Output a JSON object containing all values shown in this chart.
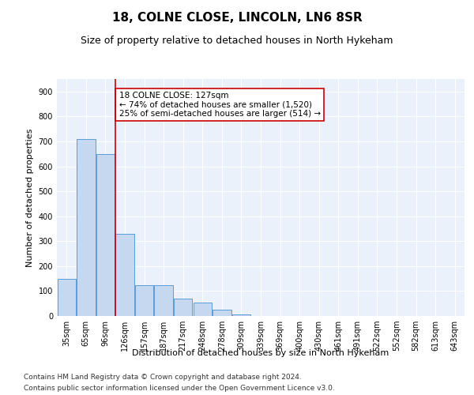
{
  "title_line1": "18, COLNE CLOSE, LINCOLN, LN6 8SR",
  "title_line2": "Size of property relative to detached houses in North Hykeham",
  "xlabel": "Distribution of detached houses by size in North Hykeham",
  "ylabel": "Number of detached properties",
  "categories": [
    "35sqm",
    "65sqm",
    "96sqm",
    "126sqm",
    "157sqm",
    "187sqm",
    "217sqm",
    "248sqm",
    "278sqm",
    "309sqm",
    "339sqm",
    "369sqm",
    "400sqm",
    "430sqm",
    "461sqm",
    "491sqm",
    "522sqm",
    "552sqm",
    "582sqm",
    "613sqm",
    "643sqm"
  ],
  "values": [
    150,
    710,
    650,
    330,
    125,
    125,
    70,
    55,
    25,
    5,
    0,
    0,
    0,
    0,
    0,
    0,
    0,
    0,
    0,
    0,
    0
  ],
  "bar_color": "#c5d8f0",
  "bar_edge_color": "#5b9bd5",
  "vline_x_index": 3,
  "vline_color": "#cc0000",
  "annotation_text": "18 COLNE CLOSE: 127sqm\n← 74% of detached houses are smaller (1,520)\n25% of semi-detached houses are larger (514) →",
  "annotation_box_color": "white",
  "annotation_border_color": "#cc0000",
  "ylim": [
    0,
    950
  ],
  "yticks": [
    0,
    100,
    200,
    300,
    400,
    500,
    600,
    700,
    800,
    900
  ],
  "footer_line1": "Contains HM Land Registry data © Crown copyright and database right 2024.",
  "footer_line2": "Contains public sector information licensed under the Open Government Licence v3.0.",
  "background_color": "#eaf1fb",
  "grid_color": "white",
  "title_fontsize": 11,
  "subtitle_fontsize": 9,
  "axis_label_fontsize": 8,
  "tick_fontsize": 7,
  "annotation_fontsize": 7.5,
  "footer_fontsize": 6.5
}
